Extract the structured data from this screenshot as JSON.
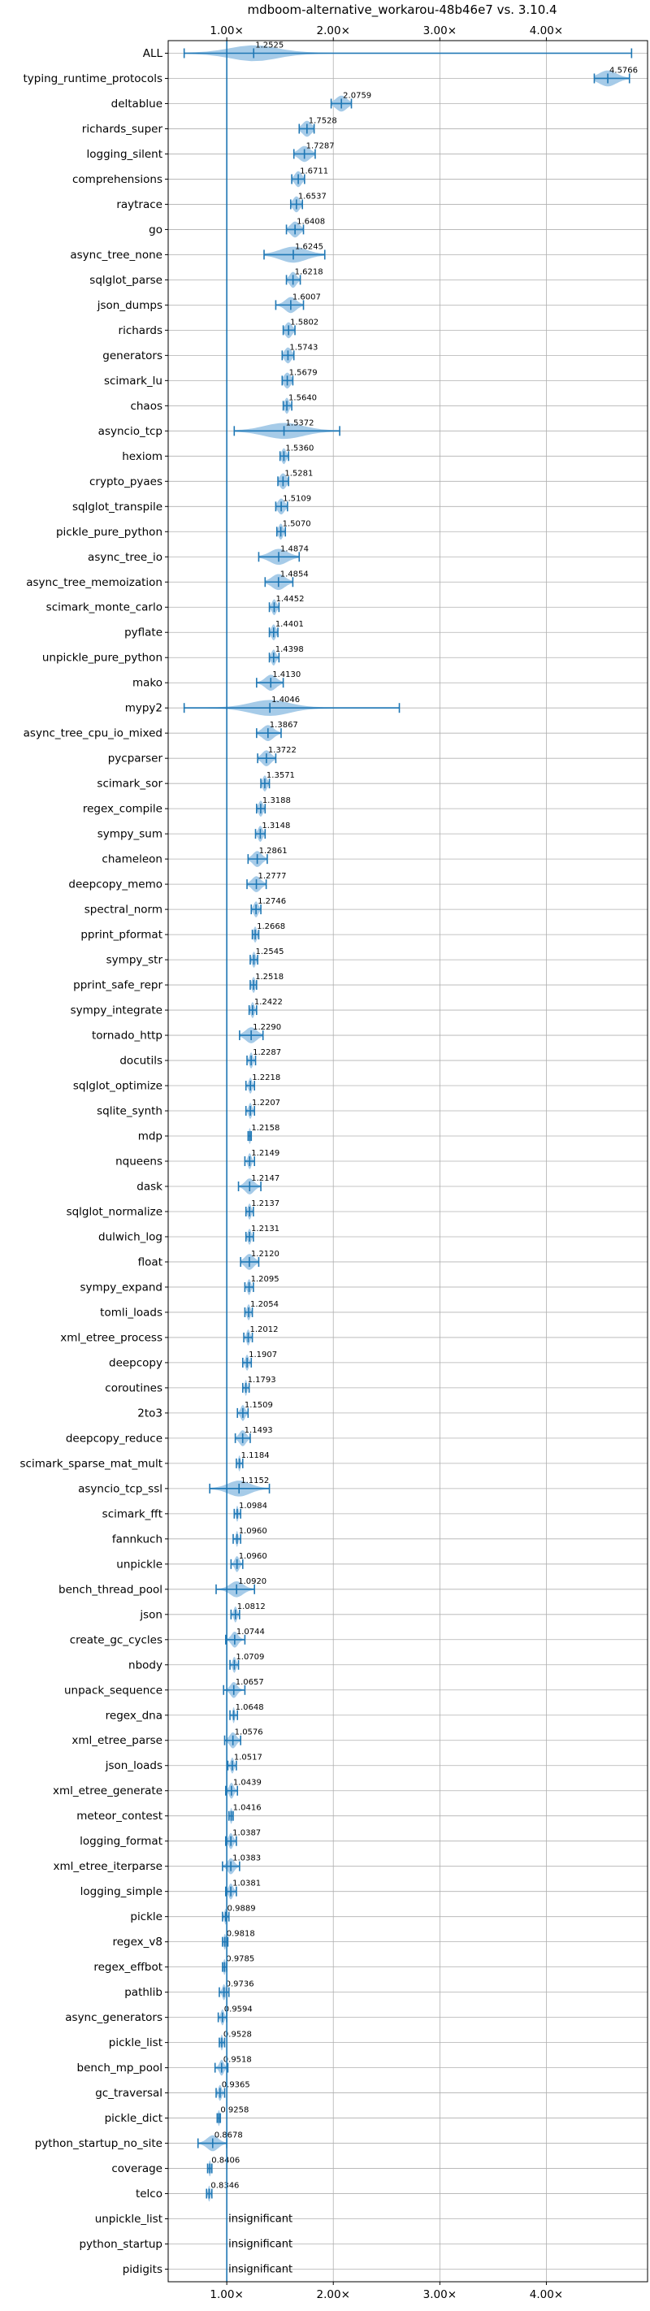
{
  "chart_data": {
    "type": "violin",
    "title": "mdboom-alternative_workarou-48b46e7 vs. 3.10.4",
    "xlim": [
      0.45,
      4.95
    ],
    "x_ticks": [
      1,
      2,
      3,
      4
    ],
    "x_tick_labels": [
      "1.00×",
      "2.00×",
      "3.00×",
      "4.00×"
    ],
    "reference_x": 1.0,
    "grid": true,
    "colors": {
      "violin": "#a6cbe8",
      "marker": "#1f77b4",
      "reference": "#1f77b4",
      "grid": "#b0b0b0"
    },
    "insignificant_label": "insignificant",
    "benchmarks": [
      {
        "name": "ALL",
        "mean": 1.2525,
        "label": "1.2525",
        "min": 0.6,
        "max": 4.8,
        "spread": 0.22
      },
      {
        "name": "typing_runtime_protocols",
        "mean": 4.5766,
        "label": "4.5766",
        "min": 4.45,
        "max": 4.78,
        "spread": 0.08
      },
      {
        "name": "deltablue",
        "mean": 2.0759,
        "label": "2.0759",
        "min": 1.98,
        "max": 2.17,
        "spread": 0.05
      },
      {
        "name": "richards_super",
        "mean": 1.7528,
        "label": "1.7528",
        "min": 1.68,
        "max": 1.82,
        "spread": 0.04
      },
      {
        "name": "logging_silent",
        "mean": 1.7287,
        "label": "1.7287",
        "min": 1.63,
        "max": 1.83,
        "spread": 0.05
      },
      {
        "name": "comprehensions",
        "mean": 1.6711,
        "label": "1.6711",
        "min": 1.61,
        "max": 1.73,
        "spread": 0.03
      },
      {
        "name": "raytrace",
        "mean": 1.6537,
        "label": "1.6537",
        "min": 1.6,
        "max": 1.71,
        "spread": 0.03
      },
      {
        "name": "go",
        "mean": 1.6408,
        "label": "1.6408",
        "min": 1.56,
        "max": 1.72,
        "spread": 0.04
      },
      {
        "name": "async_tree_none",
        "mean": 1.6245,
        "label": "1.6245",
        "min": 1.35,
        "max": 1.92,
        "spread": 0.12
      },
      {
        "name": "sqlglot_parse",
        "mean": 1.6218,
        "label": "1.6218",
        "min": 1.56,
        "max": 1.69,
        "spread": 0.03
      },
      {
        "name": "json_dumps",
        "mean": 1.6007,
        "label": "1.6007",
        "min": 1.46,
        "max": 1.72,
        "spread": 0.05
      },
      {
        "name": "richards",
        "mean": 1.5802,
        "label": "1.5802",
        "min": 1.53,
        "max": 1.64,
        "spread": 0.03
      },
      {
        "name": "generators",
        "mean": 1.5743,
        "label": "1.5743",
        "min": 1.52,
        "max": 1.63,
        "spread": 0.03
      },
      {
        "name": "scimark_lu",
        "mean": 1.5679,
        "label": "1.5679",
        "min": 1.52,
        "max": 1.62,
        "spread": 0.03
      },
      {
        "name": "chaos",
        "mean": 1.564,
        "label": "1.5640",
        "min": 1.53,
        "max": 1.61,
        "spread": 0.02
      },
      {
        "name": "asyncio_tcp",
        "mean": 1.5372,
        "label": "1.5372",
        "min": 1.07,
        "max": 2.06,
        "spread": 0.18
      },
      {
        "name": "hexiom",
        "mean": 1.536,
        "label": "1.5360",
        "min": 1.5,
        "max": 1.58,
        "spread": 0.02
      },
      {
        "name": "crypto_pyaes",
        "mean": 1.5281,
        "label": "1.5281",
        "min": 1.48,
        "max": 1.58,
        "spread": 0.03
      },
      {
        "name": "sqlglot_transpile",
        "mean": 1.5109,
        "label": "1.5109",
        "min": 1.46,
        "max": 1.57,
        "spread": 0.03
      },
      {
        "name": "pickle_pure_python",
        "mean": 1.507,
        "label": "1.5070",
        "min": 1.47,
        "max": 1.55,
        "spread": 0.02
      },
      {
        "name": "async_tree_io",
        "mean": 1.4874,
        "label": "1.4874",
        "min": 1.3,
        "max": 1.68,
        "spread": 0.08
      },
      {
        "name": "async_tree_memoization",
        "mean": 1.4854,
        "label": "1.4854",
        "min": 1.36,
        "max": 1.62,
        "spread": 0.06
      },
      {
        "name": "scimark_monte_carlo",
        "mean": 1.4452,
        "label": "1.4452",
        "min": 1.4,
        "max": 1.49,
        "spread": 0.02
      },
      {
        "name": "pyflate",
        "mean": 1.4401,
        "label": "1.4401",
        "min": 1.4,
        "max": 1.48,
        "spread": 0.02
      },
      {
        "name": "unpickle_pure_python",
        "mean": 1.4398,
        "label": "1.4398",
        "min": 1.4,
        "max": 1.49,
        "spread": 0.02
      },
      {
        "name": "mako",
        "mean": 1.413,
        "label": "1.4130",
        "min": 1.28,
        "max": 1.53,
        "spread": 0.05
      },
      {
        "name": "mypy2",
        "mean": 1.4046,
        "label": "1.4046",
        "min": 0.6,
        "max": 2.62,
        "spread": 0.18
      },
      {
        "name": "async_tree_cpu_io_mixed",
        "mean": 1.3867,
        "label": "1.3867",
        "min": 1.28,
        "max": 1.51,
        "spread": 0.05
      },
      {
        "name": "pycparser",
        "mean": 1.3722,
        "label": "1.3722",
        "min": 1.29,
        "max": 1.46,
        "spread": 0.04
      },
      {
        "name": "scimark_sor",
        "mean": 1.3571,
        "label": "1.3571",
        "min": 1.32,
        "max": 1.4,
        "spread": 0.02
      },
      {
        "name": "regex_compile",
        "mean": 1.3188,
        "label": "1.3188",
        "min": 1.28,
        "max": 1.36,
        "spread": 0.02
      },
      {
        "name": "sympy_sum",
        "mean": 1.3148,
        "label": "1.3148",
        "min": 1.27,
        "max": 1.36,
        "spread": 0.02
      },
      {
        "name": "chameleon",
        "mean": 1.2861,
        "label": "1.2861",
        "min": 1.2,
        "max": 1.38,
        "spread": 0.04
      },
      {
        "name": "deepcopy_memo",
        "mean": 1.2777,
        "label": "1.2777",
        "min": 1.19,
        "max": 1.37,
        "spread": 0.04
      },
      {
        "name": "spectral_norm",
        "mean": 1.2746,
        "label": "1.2746",
        "min": 1.23,
        "max": 1.32,
        "spread": 0.02
      },
      {
        "name": "pprint_pformat",
        "mean": 1.2668,
        "label": "1.2668",
        "min": 1.24,
        "max": 1.3,
        "spread": 0.015
      },
      {
        "name": "sympy_str",
        "mean": 1.2545,
        "label": "1.2545",
        "min": 1.22,
        "max": 1.29,
        "spread": 0.015
      },
      {
        "name": "pprint_safe_repr",
        "mean": 1.2518,
        "label": "1.2518",
        "min": 1.22,
        "max": 1.28,
        "spread": 0.015
      },
      {
        "name": "sympy_integrate",
        "mean": 1.2422,
        "label": "1.2422",
        "min": 1.21,
        "max": 1.28,
        "spread": 0.015
      },
      {
        "name": "tornado_http",
        "mean": 1.229,
        "label": "1.2290",
        "min": 1.12,
        "max": 1.34,
        "spread": 0.05
      },
      {
        "name": "docutils",
        "mean": 1.2287,
        "label": "1.2287",
        "min": 1.19,
        "max": 1.27,
        "spread": 0.015
      },
      {
        "name": "sqlglot_optimize",
        "mean": 1.2218,
        "label": "1.2218",
        "min": 1.18,
        "max": 1.26,
        "spread": 0.015
      },
      {
        "name": "sqlite_synth",
        "mean": 1.2207,
        "label": "1.2207",
        "min": 1.18,
        "max": 1.26,
        "spread": 0.015
      },
      {
        "name": "mdp",
        "mean": 1.2158,
        "label": "1.2158",
        "min": 1.2,
        "max": 1.23,
        "spread": 0.01
      },
      {
        "name": "nqueens",
        "mean": 1.2149,
        "label": "1.2149",
        "min": 1.17,
        "max": 1.26,
        "spread": 0.015
      },
      {
        "name": "dask",
        "mean": 1.2147,
        "label": "1.2147",
        "min": 1.11,
        "max": 1.32,
        "spread": 0.04
      },
      {
        "name": "sqlglot_normalize",
        "mean": 1.2137,
        "label": "1.2137",
        "min": 1.18,
        "max": 1.25,
        "spread": 0.015
      },
      {
        "name": "dulwich_log",
        "mean": 1.2131,
        "label": "1.2131",
        "min": 1.18,
        "max": 1.25,
        "spread": 0.015
      },
      {
        "name": "float",
        "mean": 1.212,
        "label": "1.2120",
        "min": 1.13,
        "max": 1.3,
        "spread": 0.04
      },
      {
        "name": "sympy_expand",
        "mean": 1.2095,
        "label": "1.2095",
        "min": 1.17,
        "max": 1.25,
        "spread": 0.015
      },
      {
        "name": "tomli_loads",
        "mean": 1.2054,
        "label": "1.2054",
        "min": 1.17,
        "max": 1.24,
        "spread": 0.015
      },
      {
        "name": "xml_etree_process",
        "mean": 1.2012,
        "label": "1.2012",
        "min": 1.16,
        "max": 1.24,
        "spread": 0.015
      },
      {
        "name": "deepcopy",
        "mean": 1.1907,
        "label": "1.1907",
        "min": 1.15,
        "max": 1.23,
        "spread": 0.015
      },
      {
        "name": "coroutines",
        "mean": 1.1793,
        "label": "1.1793",
        "min": 1.15,
        "max": 1.21,
        "spread": 0.01
      },
      {
        "name": "2to3",
        "mean": 1.1509,
        "label": "1.1509",
        "min": 1.1,
        "max": 1.2,
        "spread": 0.02
      },
      {
        "name": "deepcopy_reduce",
        "mean": 1.1493,
        "label": "1.1493",
        "min": 1.08,
        "max": 1.22,
        "spread": 0.03
      },
      {
        "name": "scimark_sparse_mat_mult",
        "mean": 1.1184,
        "label": "1.1184",
        "min": 1.09,
        "max": 1.15,
        "spread": 0.01
      },
      {
        "name": "asyncio_tcp_ssl",
        "mean": 1.1152,
        "label": "1.1152",
        "min": 0.84,
        "max": 1.4,
        "spread": 0.1
      },
      {
        "name": "scimark_fft",
        "mean": 1.0984,
        "label": "1.0984",
        "min": 1.07,
        "max": 1.13,
        "spread": 0.01
      },
      {
        "name": "fannkuch",
        "mean": 1.096,
        "label": "1.0960",
        "min": 1.06,
        "max": 1.13,
        "spread": 0.01
      },
      {
        "name": "unpickle",
        "mean": 1.096,
        "label": "1.0960",
        "min": 1.04,
        "max": 1.15,
        "spread": 0.02
      },
      {
        "name": "bench_thread_pool",
        "mean": 1.092,
        "label": "1.0920",
        "min": 0.9,
        "max": 1.26,
        "spread": 0.06
      },
      {
        "name": "json",
        "mean": 1.0812,
        "label": "1.0812",
        "min": 1.04,
        "max": 1.12,
        "spread": 0.015
      },
      {
        "name": "create_gc_cycles",
        "mean": 1.0744,
        "label": "1.0744",
        "min": 0.99,
        "max": 1.17,
        "spread": 0.03
      },
      {
        "name": "nbody",
        "mean": 1.0709,
        "label": "1.0709",
        "min": 1.03,
        "max": 1.11,
        "spread": 0.015
      },
      {
        "name": "unpack_sequence",
        "mean": 1.0657,
        "label": "1.0657",
        "min": 0.97,
        "max": 1.17,
        "spread": 0.03
      },
      {
        "name": "regex_dna",
        "mean": 1.0648,
        "label": "1.0648",
        "min": 1.03,
        "max": 1.1,
        "spread": 0.01
      },
      {
        "name": "xml_etree_parse",
        "mean": 1.0576,
        "label": "1.0576",
        "min": 0.98,
        "max": 1.13,
        "spread": 0.03
      },
      {
        "name": "json_loads",
        "mean": 1.0517,
        "label": "1.0517",
        "min": 1.01,
        "max": 1.09,
        "spread": 0.015
      },
      {
        "name": "xml_etree_generate",
        "mean": 1.0439,
        "label": "1.0439",
        "min": 0.99,
        "max": 1.1,
        "spread": 0.02
      },
      {
        "name": "meteor_contest",
        "mean": 1.0416,
        "label": "1.0416",
        "min": 1.02,
        "max": 1.06,
        "spread": 0.01
      },
      {
        "name": "logging_format",
        "mean": 1.0387,
        "label": "1.0387",
        "min": 0.99,
        "max": 1.09,
        "spread": 0.02
      },
      {
        "name": "xml_etree_iterparse",
        "mean": 1.0383,
        "label": "1.0383",
        "min": 0.96,
        "max": 1.12,
        "spread": 0.03
      },
      {
        "name": "logging_simple",
        "mean": 1.0381,
        "label": "1.0381",
        "min": 0.99,
        "max": 1.09,
        "spread": 0.02
      },
      {
        "name": "pickle",
        "mean": 0.9889,
        "label": "0.9889",
        "min": 0.96,
        "max": 1.02,
        "spread": 0.01
      },
      {
        "name": "regex_v8",
        "mean": 0.9818,
        "label": "0.9818",
        "min": 0.96,
        "max": 1.01,
        "spread": 0.01
      },
      {
        "name": "regex_effbot",
        "mean": 0.9785,
        "label": "0.9785",
        "min": 0.96,
        "max": 1.0,
        "spread": 0.01
      },
      {
        "name": "pathlib",
        "mean": 0.9736,
        "label": "0.9736",
        "min": 0.93,
        "max": 1.02,
        "spread": 0.015
      },
      {
        "name": "async_generators",
        "mean": 0.9594,
        "label": "0.9594",
        "min": 0.92,
        "max": 1.0,
        "spread": 0.015
      },
      {
        "name": "pickle_list",
        "mean": 0.9528,
        "label": "0.9528",
        "min": 0.93,
        "max": 0.98,
        "spread": 0.01
      },
      {
        "name": "bench_mp_pool",
        "mean": 0.9518,
        "label": "0.9518",
        "min": 0.89,
        "max": 1.01,
        "spread": 0.02
      },
      {
        "name": "gc_traversal",
        "mean": 0.9365,
        "label": "0.9365",
        "min": 0.9,
        "max": 0.98,
        "spread": 0.015
      },
      {
        "name": "pickle_dict",
        "mean": 0.9258,
        "label": "0.9258",
        "min": 0.91,
        "max": 0.94,
        "spread": 0.01
      },
      {
        "name": "python_startup_no_site",
        "mean": 0.8678,
        "label": "0.8678",
        "min": 0.73,
        "max": 1.0,
        "spread": 0.05
      },
      {
        "name": "coverage",
        "mean": 0.8406,
        "label": "0.8406",
        "min": 0.82,
        "max": 0.86,
        "spread": 0.01
      },
      {
        "name": "telco",
        "mean": 0.8346,
        "label": "0.8346",
        "min": 0.81,
        "max": 0.86,
        "spread": 0.01
      },
      {
        "name": "unpickle_list",
        "insignificant": true
      },
      {
        "name": "python_startup",
        "insignificant": true
      },
      {
        "name": "pidigits",
        "insignificant": true
      }
    ]
  }
}
